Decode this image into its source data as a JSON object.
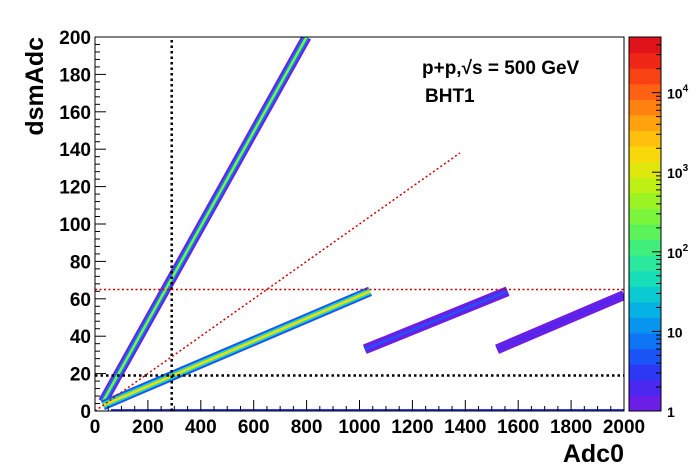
{
  "chart_data": {
    "type": "heatmap",
    "xlabel": "Adc0",
    "ylabel": "dsmAdc",
    "xlim": [
      0,
      2000
    ],
    "ylim": [
      0,
      200
    ],
    "x_ticks": [
      0,
      200,
      400,
      600,
      800,
      1000,
      1200,
      1400,
      1600,
      1800,
      2000
    ],
    "y_ticks": [
      0,
      20,
      40,
      60,
      80,
      100,
      120,
      140,
      160,
      180,
      200
    ],
    "annotations": [
      {
        "text": "p+p,√s = 500 GeV"
      },
      {
        "text": "BHT1"
      }
    ],
    "colorbar": {
      "scale": "log",
      "range": [
        1,
        50000
      ],
      "labels": [
        {
          "base": "1",
          "exp": "",
          "value": 1
        },
        {
          "base": "10",
          "exp": "",
          "value": 10
        },
        {
          "base": "10",
          "exp": "2",
          "value": 100
        },
        {
          "base": "10",
          "exp": "3",
          "value": 1000
        },
        {
          "base": "10",
          "exp": "4",
          "value": 10000
        }
      ],
      "colors": [
        "#6a1ee6",
        "#4b28f0",
        "#2d38f5",
        "#1b55f8",
        "#0f75f6",
        "#0895ef",
        "#06b2e4",
        "#0ccbd0",
        "#18deb8",
        "#2ae89c",
        "#40ee7c",
        "#5cf25a",
        "#7bf43c",
        "#9cf324",
        "#bff014",
        "#dfe60c",
        "#f8d80a",
        "#ffbf0c",
        "#ffa20e",
        "#ff8210",
        "#ff6012",
        "#f84214",
        "#ee2716",
        "#e0121a"
      ]
    },
    "bands": [
      {
        "name": "",
        "points": [
          [
            30,
            5
          ],
          [
            800,
            200
          ]
        ],
        "peak_count": 300
      },
      {
        "name": "",
        "points": [
          [
            30,
            3
          ],
          [
            1040,
            64
          ]
        ],
        "peak_count": 1500
      },
      {
        "name": "",
        "points": [
          [
            1020,
            33
          ],
          [
            1560,
            64
          ]
        ],
        "peak_count": 4
      },
      {
        "name": "",
        "points": [
          [
            1520,
            33
          ],
          [
            2000,
            62
          ]
        ],
        "peak_count": 2
      }
    ],
    "reference_lines": [
      {
        "orientation": "vertical",
        "x": 290,
        "style": "dotted",
        "color": "#000000"
      },
      {
        "orientation": "horizontal",
        "y": 19,
        "style": "dotted",
        "color": "#000000"
      },
      {
        "orientation": "horizontal",
        "y": 65,
        "style": "dotted",
        "color": "#cc0000"
      },
      {
        "orientation": "diagonal",
        "from": [
          0,
          0
        ],
        "to": [
          1380,
          138
        ],
        "style": "dotted",
        "color": "#cc0000"
      }
    ]
  }
}
